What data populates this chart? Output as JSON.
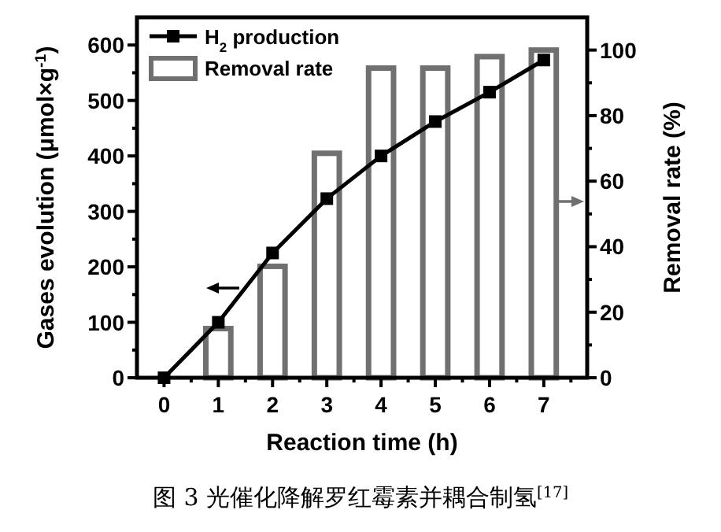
{
  "chart_data": {
    "type": "line",
    "xlabel": "Reaction time (h)",
    "ylabel": "Gases evolution (μmol×g$^{-1}$)",
    "y2label": "Removal rate (%)",
    "xlim": [
      -0.5,
      7.8
    ],
    "ylim": [
      0,
      650
    ],
    "y2lim": [
      0,
      110
    ],
    "xticks": [
      0,
      {
        "value": 0.5,
        "label": null
      },
      1,
      {
        "value": 1.5,
        "label": null
      },
      2,
      {
        "value": 2.5,
        "label": null
      },
      3,
      {
        "value": 3.5,
        "label": null
      },
      4,
      {
        "value": 4.5,
        "label": null
      },
      5,
      {
        "value": 5.5,
        "label": null
      },
      6,
      {
        "value": 6.5,
        "label": null
      },
      7,
      {
        "value": 7.5,
        "label": null
      }
    ],
    "yticks": [
      0,
      {
        "value": 50,
        "label": null
      },
      100,
      {
        "value": 150,
        "label": null
      },
      200,
      {
        "value": 250,
        "label": null
      },
      300,
      {
        "value": 350,
        "label": null
      },
      400,
      {
        "value": 450,
        "label": null
      },
      500,
      {
        "value": 550,
        "label": null
      },
      600
    ],
    "y2ticks": [
      0,
      {
        "value": 10,
        "label": null
      },
      20,
      {
        "value": 30,
        "label": null
      },
      40,
      {
        "value": 50,
        "label": null
      },
      60,
      {
        "value": 70,
        "label": null
      },
      80,
      {
        "value": 90,
        "label": null
      },
      100
    ],
    "series": [
      {
        "name": "H$_{2}$ production",
        "color": "#000000",
        "x": [
          0,
          1,
          2,
          3,
          4,
          5,
          6,
          7
        ],
        "values": [
          0,
          100,
          225,
          323,
          400,
          462,
          515,
          573
        ]
      },
      {
        "name": "Removal rate",
        "type": "bar",
        "axis": "y2",
        "color": "#707070",
        "x": [
          1,
          2,
          3,
          4,
          5,
          6,
          7
        ],
        "values": [
          15,
          34,
          68.5,
          94.5,
          94.5,
          98,
          100
        ]
      }
    ],
    "marker": "square",
    "line_style": "solid",
    "grid": false,
    "legend": "top left",
    "annotations": [
      "图 3  光催化降解罗红霉素并耦合制氢$^{[17]}$"
    ]
  }
}
